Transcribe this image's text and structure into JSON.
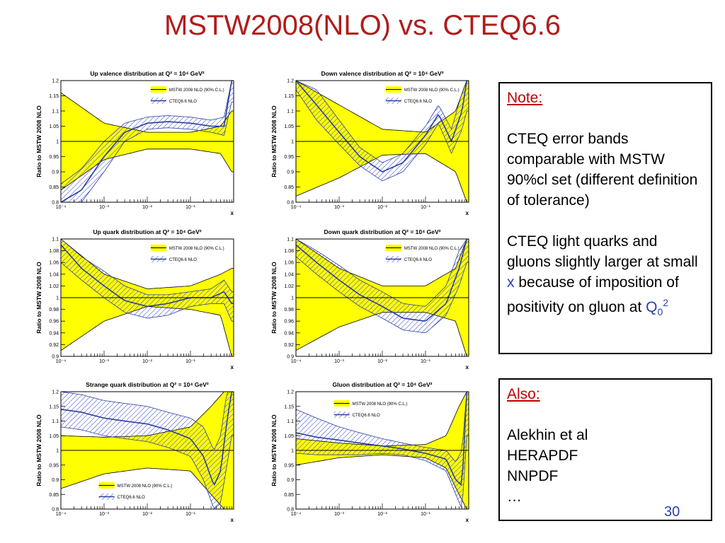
{
  "slide": {
    "title": "MSTW2008(NLO) vs. CTEQ6.6",
    "page_number": "30"
  },
  "note": {
    "heading": "Note:",
    "p1": "CTEQ error bands comparable with MSTW 90%cl set (different definition of tolerance)",
    "p2_a": "CTEQ light quarks and gluons slightly larger at small ",
    "p2_x": "x",
    "p2_b": " because of imposition of positivity on gluon at ",
    "p2_q": "Q",
    "p2_sub": "0",
    "p2_sup": "2"
  },
  "also": {
    "heading": "Also:",
    "items": [
      "Alekhin et al",
      "HERAPDF",
      "NNPDF",
      "…"
    ]
  },
  "colors": {
    "mstw_band": "#ffff00",
    "mstw_line": "#000000",
    "cteq_hatch": "#3b48c8",
    "cteq_line": "#2a3fa0"
  },
  "chart_data": [
    {
      "type": "area",
      "title": "Up valence distribution at Q² = 10⁴ GeV²",
      "xlabel": "x",
      "ylabel": "Ratio to MSTW 2008 NLO",
      "xscale": "log",
      "xlim": [
        0.0001,
        1
      ],
      "ylim": [
        0.8,
        1.2
      ],
      "xticks": [
        "10⁻⁴",
        "10⁻³",
        "10⁻²",
        "10⁻¹"
      ],
      "yticks": [
        "0.8",
        "0.85",
        "0.9",
        "0.95",
        "1",
        "1.05",
        "1.1",
        "1.15",
        "1.2"
      ],
      "legend_position": "top-right",
      "series": [
        {
          "name": "MSTW 2008 NLO (90% C.L.)",
          "x": [
            0.0001,
            0.001,
            0.01,
            0.1,
            0.5,
            0.9
          ],
          "upper": [
            1.16,
            1.06,
            1.03,
            1.03,
            1.05,
            1.1
          ],
          "lower": [
            0.84,
            0.94,
            0.975,
            0.975,
            0.96,
            0.9
          ]
        },
        {
          "name": "CTEQ6.6 NLO",
          "x": [
            0.0001,
            0.0003,
            0.001,
            0.003,
            0.01,
            0.03,
            0.1,
            0.3,
            0.6,
            0.9
          ],
          "central": [
            0.8,
            0.84,
            0.95,
            1.03,
            1.06,
            1.065,
            1.06,
            1.05,
            1.05,
            1.2
          ],
          "upper": [
            0.86,
            0.91,
            1.0,
            1.06,
            1.08,
            1.085,
            1.08,
            1.07,
            1.08,
            1.2
          ],
          "lower": [
            0.8,
            0.8,
            0.9,
            1.0,
            1.04,
            1.045,
            1.04,
            1.03,
            1.02,
            1.13
          ]
        }
      ]
    },
    {
      "type": "area",
      "title": "Down valence distribution at Q² = 10⁴ GeV²",
      "xlabel": "x",
      "ylabel": "Ratio to MSTW 2008 NLO",
      "xscale": "log",
      "xlim": [
        0.0001,
        1
      ],
      "ylim": [
        0.8,
        1.2
      ],
      "xticks": [
        "10⁻⁴",
        "10⁻³",
        "10⁻²",
        "10⁻¹"
      ],
      "yticks": [
        "0.8",
        "0.85",
        "0.9",
        "0.95",
        "1",
        "1.05",
        "1.1",
        "1.15",
        "1.2"
      ],
      "legend_position": "top-right",
      "series": [
        {
          "name": "MSTW 2008 NLO (90% C.L.)",
          "x": [
            0.0001,
            0.001,
            0.01,
            0.1,
            0.5,
            0.9
          ],
          "upper": [
            1.2,
            1.12,
            1.04,
            1.03,
            1.1,
            1.2
          ],
          "lower": [
            0.82,
            0.88,
            0.955,
            0.96,
            0.9,
            0.8
          ]
        },
        {
          "name": "CTEQ6.6 NLO",
          "x": [
            0.0001,
            0.0003,
            0.001,
            0.003,
            0.01,
            0.03,
            0.1,
            0.2,
            0.4,
            0.7,
            0.9
          ],
          "central": [
            1.2,
            1.12,
            1.03,
            0.95,
            0.9,
            0.93,
            1.02,
            1.09,
            1.0,
            1.1,
            1.2
          ],
          "upper": [
            1.2,
            1.17,
            1.07,
            0.98,
            0.93,
            0.96,
            1.05,
            1.12,
            1.04,
            1.16,
            1.2
          ],
          "lower": [
            1.17,
            1.07,
            0.99,
            0.92,
            0.87,
            0.9,
            0.99,
            1.06,
            0.96,
            1.04,
            1.1
          ]
        }
      ]
    },
    {
      "type": "area",
      "title": "Up quark distribution at Q² = 10⁴ GeV²",
      "xlabel": "x",
      "ylabel": "Ratio to MSTW 2008 NLO",
      "xscale": "log",
      "xlim": [
        0.0001,
        1
      ],
      "ylim": [
        0.9,
        1.1
      ],
      "xticks": [
        "10⁻⁴",
        "10⁻³",
        "10⁻²",
        "10⁻¹"
      ],
      "yticks": [
        "0.9",
        "0.92",
        "0.94",
        "0.96",
        "0.98",
        "1",
        "1.02",
        "1.04",
        "1.06",
        "1.08",
        "1.1"
      ],
      "legend_position": "top-right",
      "series": [
        {
          "name": "MSTW 2008 NLO (90% C.L.)",
          "x": [
            0.0001,
            0.001,
            0.01,
            0.1,
            0.5,
            0.9
          ],
          "upper": [
            1.1,
            1.04,
            1.015,
            1.02,
            1.04,
            1.05
          ],
          "lower": [
            0.91,
            0.96,
            0.985,
            0.98,
            0.97,
            0.9
          ]
        },
        {
          "name": "CTEQ6.6 NLO",
          "x": [
            0.0001,
            0.0003,
            0.001,
            0.003,
            0.01,
            0.03,
            0.1,
            0.3,
            0.6,
            0.9
          ],
          "central": [
            1.09,
            1.05,
            1.02,
            0.995,
            0.985,
            0.99,
            1.0,
            1.0,
            1.01,
            0.99
          ],
          "upper": [
            1.1,
            1.07,
            1.045,
            1.02,
            1.005,
            1.005,
            1.01,
            1.015,
            1.03,
            1.01
          ],
          "lower": [
            1.06,
            1.03,
            1.0,
            0.975,
            0.965,
            0.97,
            0.985,
            0.99,
            0.99,
            0.96
          ]
        }
      ]
    },
    {
      "type": "area",
      "title": "Down quark distribution at Q² = 10⁴ GeV²",
      "xlabel": "x",
      "ylabel": "Ratio to MSTW 2008 NLO",
      "xscale": "log",
      "xlim": [
        0.0001,
        1
      ],
      "ylim": [
        0.9,
        1.1
      ],
      "xticks": [
        "10⁻⁴",
        "10⁻³",
        "10⁻²",
        "10⁻¹"
      ],
      "yticks": [
        "0.9",
        "0.92",
        "0.94",
        "0.96",
        "0.98",
        "1",
        "1.02",
        "1.04",
        "1.06",
        "1.08",
        "1.1"
      ],
      "legend_position": "top-right",
      "series": [
        {
          "name": "MSTW 2008 NLO (90% C.L.)",
          "x": [
            0.0001,
            0.001,
            0.01,
            0.1,
            0.5,
            0.9
          ],
          "upper": [
            1.1,
            1.05,
            1.02,
            1.02,
            1.05,
            1.1
          ],
          "lower": [
            0.91,
            0.95,
            0.975,
            0.975,
            0.96,
            0.9
          ]
        },
        {
          "name": "CTEQ6.6 NLO",
          "x": [
            0.0001,
            0.0003,
            0.001,
            0.003,
            0.01,
            0.03,
            0.1,
            0.3,
            0.6,
            0.9
          ],
          "central": [
            1.09,
            1.06,
            1.03,
            1.005,
            0.985,
            0.965,
            0.96,
            0.99,
            1.05,
            1.1
          ],
          "upper": [
            1.1,
            1.08,
            1.055,
            1.03,
            1.01,
            0.99,
            0.985,
            1.02,
            1.08,
            1.1
          ],
          "lower": [
            1.07,
            1.04,
            1.01,
            0.985,
            0.965,
            0.945,
            0.94,
            0.97,
            1.02,
            1.06
          ]
        }
      ]
    },
    {
      "type": "area",
      "title": "Strange quark distribution at Q² = 10⁴ GeV²",
      "xlabel": "x",
      "ylabel": "Ratio to MSTW 2008 NLO",
      "xscale": "log",
      "xlim": [
        0.0001,
        1
      ],
      "ylim": [
        0.8,
        1.2
      ],
      "xticks": [
        "10⁻⁴",
        "10⁻³",
        "10⁻²",
        "10⁻¹"
      ],
      "yticks": [
        "0.8",
        "0.85",
        "0.9",
        "0.95",
        "1",
        "1.05",
        "1.1",
        "1.15",
        "1.2"
      ],
      "legend_position": "bottom-left",
      "series": [
        {
          "name": "MSTW 2008 NLO (90% C.L.)",
          "x": [
            0.0001,
            0.001,
            0.01,
            0.1,
            0.3,
            0.6,
            0.9
          ],
          "upper": [
            1.05,
            1.045,
            1.05,
            1.08,
            1.15,
            1.2,
            1.2
          ],
          "lower": [
            0.87,
            0.92,
            0.94,
            0.93,
            0.85,
            0.8,
            0.8
          ]
        },
        {
          "name": "CTEQ6.6 NLO",
          "x": [
            0.0001,
            0.0003,
            0.001,
            0.003,
            0.01,
            0.03,
            0.1,
            0.2,
            0.35,
            0.5,
            0.7,
            0.9
          ],
          "central": [
            1.14,
            1.13,
            1.11,
            1.1,
            1.09,
            1.07,
            1.04,
            0.98,
            0.88,
            0.93,
            1.1,
            1.2
          ],
          "upper": [
            1.2,
            1.19,
            1.17,
            1.16,
            1.15,
            1.13,
            1.11,
            1.08,
            1.0,
            1.05,
            1.2,
            1.2
          ],
          "lower": [
            1.08,
            1.07,
            1.05,
            1.04,
            1.03,
            1.01,
            0.98,
            0.9,
            0.8,
            0.82,
            0.95,
            1.05
          ]
        }
      ]
    },
    {
      "type": "area",
      "title": "Gluon distribution at Q² = 10⁴ GeV²",
      "xlabel": "x",
      "ylabel": "Ratio to MSTW 2008 NLO",
      "xscale": "log",
      "xlim": [
        0.0001,
        1
      ],
      "ylim": [
        0.8,
        1.2
      ],
      "xticks": [
        "10⁻⁴",
        "10⁻³",
        "10⁻²",
        "10⁻¹"
      ],
      "yticks": [
        "0.8",
        "0.85",
        "0.9",
        "0.95",
        "1",
        "1.05",
        "1.1",
        "1.15",
        "1.2"
      ],
      "legend_position": "top-left",
      "series": [
        {
          "name": "MSTW 2008 NLO (90% C.L.)",
          "x": [
            0.0001,
            0.001,
            0.01,
            0.1,
            0.3,
            0.6,
            0.9
          ],
          "upper": [
            1.04,
            1.025,
            1.015,
            1.02,
            1.05,
            1.15,
            1.2
          ],
          "lower": [
            0.95,
            0.975,
            0.985,
            0.975,
            0.94,
            0.85,
            0.8
          ]
        },
        {
          "name": "CTEQ6.6 NLO",
          "x": [
            0.0001,
            0.0003,
            0.001,
            0.003,
            0.01,
            0.03,
            0.1,
            0.3,
            0.5,
            0.7,
            0.9
          ],
          "central": [
            1.06,
            1.045,
            1.035,
            1.025,
            1.015,
            1.005,
            0.99,
            0.97,
            0.9,
            0.88,
            1.2
          ],
          "upper": [
            1.14,
            1.11,
            1.08,
            1.06,
            1.04,
            1.025,
            1.01,
            1.0,
            0.96,
            1.0,
            1.2
          ],
          "lower": [
            0.99,
            0.985,
            0.985,
            0.985,
            0.99,
            0.985,
            0.965,
            0.93,
            0.85,
            0.8,
            1.05
          ]
        }
      ]
    }
  ]
}
